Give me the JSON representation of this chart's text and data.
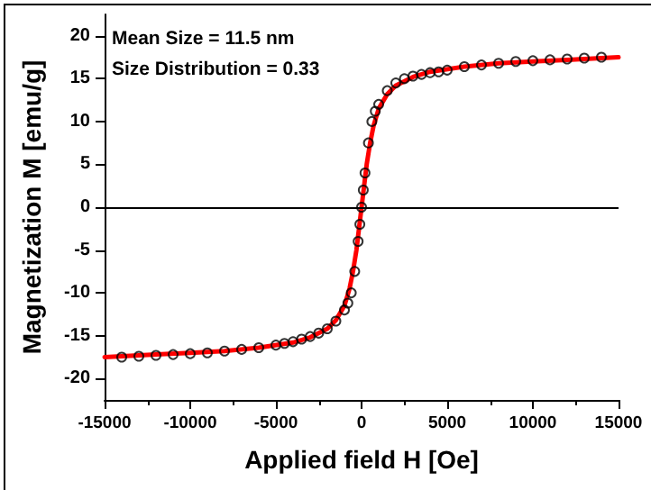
{
  "chart_data": {
    "type": "scatter",
    "xlabel": "Applied field H [Oe]",
    "ylabel": "Magnetization M [emu/g]",
    "xlim": [
      -15000,
      15000
    ],
    "xticks": [
      -15000,
      -10000,
      -5000,
      0,
      5000,
      10000,
      15000
    ],
    "ylim": [
      -22.5,
      22.5
    ],
    "yticks": [
      -20,
      -15,
      -10,
      -5,
      0,
      5,
      10,
      15,
      20
    ],
    "grid": false,
    "annotations": [
      "Mean Size = 11.5 nm",
      "Size Distribution = 0.33"
    ],
    "ref_lines": [
      {
        "axis": "y",
        "value": 0,
        "color": "#000000"
      }
    ],
    "series": [
      {
        "marker": "circle",
        "color": "#000000",
        "x": [
          -14000,
          -13000,
          -12000,
          -11000,
          -10000,
          -9000,
          -8000,
          -7000,
          -6000,
          -5000,
          -4500,
          -4000,
          -3500,
          -3000,
          -2500,
          -2000,
          -1500,
          -1000,
          -800,
          -600,
          -400,
          -200,
          -100,
          0,
          100,
          200,
          400,
          600,
          800,
          1000,
          1500,
          2000,
          2500,
          3000,
          3500,
          4000,
          4500,
          5000,
          6000,
          7000,
          8000,
          9000,
          10000,
          11000,
          12000,
          13000,
          14000
        ],
        "values": [
          -17.5,
          -17.4,
          -17.3,
          -17.2,
          -17.1,
          -17.0,
          -16.8,
          -16.6,
          -16.4,
          -16.1,
          -15.9,
          -15.7,
          -15.4,
          -15.1,
          -14.7,
          -14.2,
          -13.3,
          -12.0,
          -11.2,
          -10.0,
          -7.5,
          -4.0,
          -2.0,
          0,
          2.0,
          4.0,
          7.5,
          10.0,
          11.2,
          12.0,
          13.6,
          14.5,
          15.0,
          15.3,
          15.5,
          15.7,
          15.8,
          16.0,
          16.4,
          16.6,
          16.8,
          17.0,
          17.1,
          17.2,
          17.3,
          17.4,
          17.5
        ]
      },
      {
        "type": "line",
        "marker": "none",
        "line_style": "solid",
        "color": "#ff0000",
        "x": [
          -15000,
          -12000,
          -10000,
          -8000,
          -6000,
          -4000,
          -3000,
          -2000,
          -1500,
          -1000,
          -700,
          -500,
          -300,
          -150,
          0,
          150,
          300,
          500,
          700,
          1000,
          1500,
          2000,
          3000,
          4000,
          6000,
          8000,
          10000,
          12000,
          15000
        ],
        "values": [
          -17.5,
          -17.2,
          -17.0,
          -16.8,
          -16.4,
          -15.8,
          -15.2,
          -14.2,
          -13.2,
          -11.5,
          -9.5,
          -7.5,
          -5.0,
          -2.5,
          0,
          2.5,
          5.0,
          7.5,
          9.5,
          11.5,
          13.2,
          14.2,
          15.2,
          15.8,
          16.4,
          16.8,
          17.0,
          17.2,
          17.5
        ]
      }
    ]
  }
}
